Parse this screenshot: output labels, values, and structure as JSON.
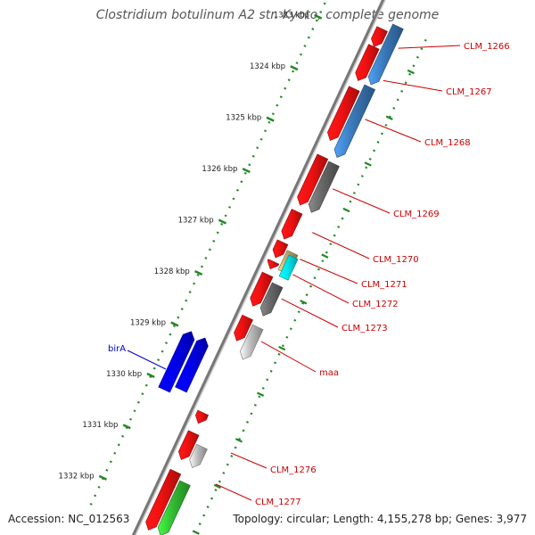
{
  "title": "Clostridium botulinum A2 str. Kyoto, complete genome",
  "footer": {
    "accession": "Accession: NC_012563",
    "topology": "Topology: circular; Length: 4,155,278 bp; Genes: 3,977"
  },
  "ruler": [
    "1323 kbp",
    "1324 kbp",
    "1325 kbp",
    "1326 kbp",
    "1327 kbp",
    "1328 kbp",
    "1329 kbp",
    "1330 kbp",
    "1331 kbp",
    "1332 kbp"
  ],
  "gene_labels": [
    {
      "name": "CLM_1266",
      "color": "#cc0000"
    },
    {
      "name": "CLM_1267",
      "color": "#cc0000"
    },
    {
      "name": "CLM_1268",
      "color": "#cc0000"
    },
    {
      "name": "CLM_1269",
      "color": "#cc0000"
    },
    {
      "name": "CLM_1270",
      "color": "#cc0000"
    },
    {
      "name": "CLM_1271",
      "color": "#cc0000"
    },
    {
      "name": "CLM_1272",
      "color": "#cc0000"
    },
    {
      "name": "CLM_1273",
      "color": "#cc0000"
    },
    {
      "name": "maa",
      "color": "#cc0000"
    },
    {
      "name": "birA",
      "color": "#0000cc"
    },
    {
      "name": "CLM_1276",
      "color": "#cc0000"
    },
    {
      "name": "CLM_1277",
      "color": "#cc0000"
    }
  ],
  "colors": {
    "cds": "#ee1111",
    "gene": "#3a78b8",
    "dark_feature": "#666666",
    "light_feature": "#bbbbbb",
    "birA": "#0000ee",
    "highlight_cyan": "#00e5ee",
    "highlight_tan": "#b5a86a",
    "green_feature": "#33bb33",
    "backbone": "#888888",
    "tick": "#228822"
  }
}
